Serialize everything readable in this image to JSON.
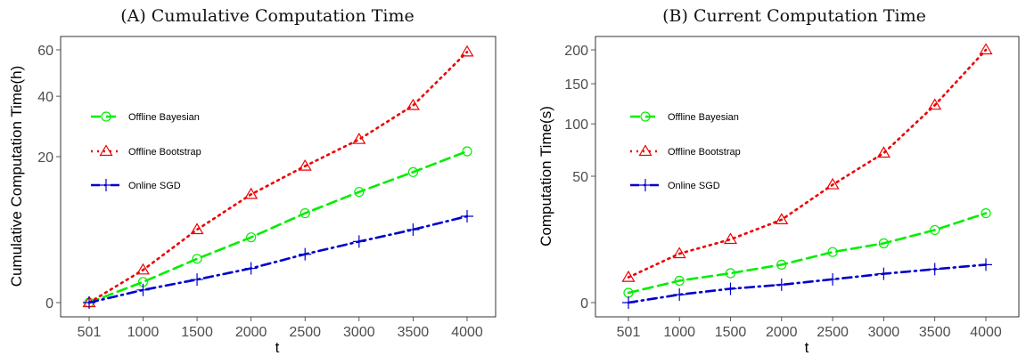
{
  "chart_data": [
    {
      "type": "line",
      "title": "(A) Cumulative Computation Time",
      "xlabel": "t",
      "ylabel": "Cumulative Computation Time(h)",
      "y_scale": "sqrt",
      "x": [
        501,
        1000,
        1500,
        2000,
        2500,
        3000,
        3500,
        4000
      ],
      "xticks": [
        "501",
        "1000",
        "1500",
        "2000",
        "2500",
        "3000",
        "3500",
        "4000"
      ],
      "yticks": [
        0,
        20,
        40,
        60
      ],
      "ytick_labels": [
        "0",
        "20",
        "40",
        "60"
      ],
      "ylim": [
        0,
        62
      ],
      "legend_position": "left",
      "series": [
        {
          "name": "Offline Bayesian",
          "color": "#00ee00",
          "marker": "circle",
          "linestyle": "dashed",
          "values": [
            0,
            0.4,
            1.8,
            4.0,
            7.5,
            11.5,
            16.0,
            21.5
          ]
        },
        {
          "name": "Offline Bootstrap",
          "color": "#ee0000",
          "marker": "triangle",
          "linestyle": "dotted",
          "values": [
            0,
            1.0,
            5.0,
            11.0,
            17.5,
            25.0,
            36.5,
            59.0
          ]
        },
        {
          "name": "Online SGD",
          "color": "#0000cc",
          "marker": "plus",
          "linestyle": "dashdot",
          "values": [
            0,
            0.15,
            0.5,
            1.1,
            2.2,
            3.5,
            5.0,
            7.0
          ]
        }
      ]
    },
    {
      "type": "line",
      "title": "(B) Current Computation Time",
      "xlabel": "t",
      "ylabel": "Computation Time(s)",
      "y_scale": "sqrt",
      "x": [
        501,
        1000,
        1500,
        2000,
        2500,
        3000,
        3500,
        4000
      ],
      "xticks": [
        "501",
        "1000",
        "1500",
        "2000",
        "2500",
        "3000",
        "3500",
        "4000"
      ],
      "yticks": [
        0,
        50,
        100,
        150,
        200
      ],
      "ytick_labels": [
        "0",
        "50",
        "100",
        "150",
        "200"
      ],
      "ylim": [
        0,
        210
      ],
      "legend_position": "left",
      "series": [
        {
          "name": "Offline Bayesian",
          "color": "#00ee00",
          "marker": "circle",
          "linestyle": "dashed",
          "values": [
            0.3,
            1.5,
            2.7,
            4.5,
            8.0,
            11.0,
            16.5,
            25.0
          ]
        },
        {
          "name": "Offline Bootstrap",
          "color": "#ee0000",
          "marker": "triangle",
          "linestyle": "dotted",
          "values": [
            2.0,
            7.5,
            12.5,
            21.5,
            43.5,
            70.0,
            122.0,
            200.0
          ]
        },
        {
          "name": "Online SGD",
          "color": "#0000cc",
          "marker": "plus",
          "linestyle": "dashdot",
          "values": [
            0,
            0.2,
            0.6,
            1.0,
            1.7,
            2.6,
            3.5,
            4.5
          ]
        }
      ]
    }
  ]
}
